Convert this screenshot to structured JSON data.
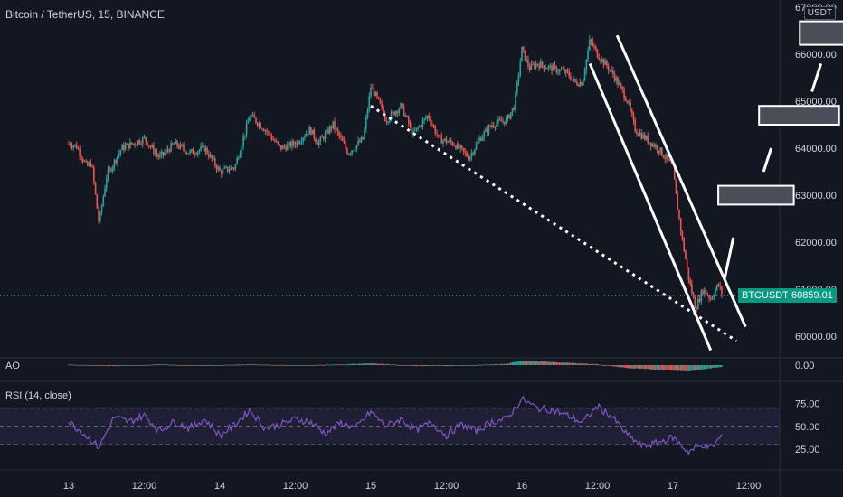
{
  "header": {
    "title": "Bitcoin / TetherUS, 15, BINANCE",
    "currency": "USDT"
  },
  "price_tag": {
    "symbol": "BTCUSDT",
    "value": "60859.01",
    "color": "#089981"
  },
  "indicators": {
    "ao_label": "AO",
    "rsi_label": "RSI (14, close)"
  },
  "colors": {
    "background": "#131722",
    "up": "#26a69a",
    "down": "#ef5350",
    "rsi_line": "#7e57c2",
    "rsi_band": "#7e57c2",
    "annotations": "#ffffff"
  },
  "chart_data": {
    "type": "candlestick",
    "title": "Bitcoin / TetherUS, 15, BINANCE",
    "xlabel": "",
    "ylabel": "",
    "x_ticks": [
      "13",
      "12:00",
      "14",
      "12:00",
      "15",
      "12:00",
      "16",
      "12:00",
      "17",
      "12:00"
    ],
    "y_ticks": [
      "60000.00",
      "61000.00",
      "62000.00",
      "63000.00",
      "64000.00",
      "65000.00",
      "66000.00",
      "67000.00"
    ],
    "ylim": [
      59500,
      67000
    ],
    "last_price": 60859.01,
    "price_path": [
      [
        0.0,
        64100
      ],
      [
        0.05,
        64050
      ],
      [
        0.12,
        63600
      ],
      [
        0.15,
        63700
      ],
      [
        0.2,
        62400
      ],
      [
        0.25,
        63400
      ],
      [
        0.35,
        64000
      ],
      [
        0.5,
        64200
      ],
      [
        0.6,
        63800
      ],
      [
        0.7,
        64100
      ],
      [
        0.8,
        63900
      ],
      [
        0.9,
        64000
      ],
      [
        1.0,
        63500
      ],
      [
        1.1,
        63600
      ],
      [
        1.2,
        64700
      ],
      [
        1.3,
        64400
      ],
      [
        1.4,
        64000
      ],
      [
        1.5,
        64100
      ],
      [
        1.6,
        64400
      ],
      [
        1.65,
        64100
      ],
      [
        1.75,
        64500
      ],
      [
        1.85,
        63900
      ],
      [
        1.95,
        64200
      ],
      [
        2.0,
        65300
      ],
      [
        2.05,
        65000
      ],
      [
        2.1,
        64600
      ],
      [
        2.2,
        64900
      ],
      [
        2.28,
        64300
      ],
      [
        2.38,
        64700
      ],
      [
        2.45,
        64200
      ],
      [
        2.55,
        64100
      ],
      [
        2.65,
        63800
      ],
      [
        2.72,
        64200
      ],
      [
        2.8,
        64500
      ],
      [
        2.9,
        64600
      ],
      [
        2.95,
        64900
      ],
      [
        3.0,
        66100
      ],
      [
        3.05,
        65700
      ],
      [
        3.1,
        65800
      ],
      [
        3.2,
        65700
      ],
      [
        3.3,
        65600
      ],
      [
        3.35,
        65400
      ],
      [
        3.4,
        65400
      ],
      [
        3.45,
        66300
      ],
      [
        3.5,
        66000
      ],
      [
        3.6,
        65600
      ],
      [
        3.7,
        65000
      ],
      [
        3.75,
        64400
      ],
      [
        3.82,
        64200
      ],
      [
        3.9,
        64000
      ],
      [
        3.95,
        63800
      ],
      [
        4.0,
        63600
      ],
      [
        4.02,
        63000
      ],
      [
        4.05,
        62300
      ],
      [
        4.08,
        61700
      ],
      [
        4.1,
        61300
      ],
      [
        4.12,
        61000
      ],
      [
        4.15,
        60600
      ],
      [
        4.2,
        61000
      ],
      [
        4.25,
        60800
      ],
      [
        4.3,
        61100
      ],
      [
        4.33,
        60859
      ]
    ],
    "annotations": {
      "dotted_trendline": [
        [
          2.0,
          64900
        ],
        [
          4.42,
          59900
        ]
      ],
      "channel_upper": [
        [
          3.63,
          66400
        ],
        [
          4.48,
          60200
        ]
      ],
      "channel_lower": [
        [
          3.45,
          65800
        ],
        [
          4.25,
          59700
        ]
      ],
      "projection_dashes": [
        [
          [
            4.34,
            61200
          ],
          [
            4.4,
            62100
          ]
        ],
        [
          [
            4.6,
            63500
          ],
          [
            4.65,
            64000
          ]
        ],
        [
          [
            4.92,
            65200
          ],
          [
            4.98,
            65800
          ]
        ]
      ],
      "target_boxes": [
        {
          "x0": 4.3,
          "x1": 4.8,
          "y0": 62800,
          "y1": 63200
        },
        {
          "x0": 4.57,
          "x1": 5.1,
          "y0": 64500,
          "y1": 64900
        },
        {
          "x0": 4.84,
          "x1": 5.5,
          "y0": 66200,
          "y1": 66700
        }
      ]
    },
    "ao": {
      "label": "AO",
      "ticks": [
        "0.00"
      ],
      "ylim": [
        -600,
        600
      ],
      "path": [
        [
          0.0,
          40
        ],
        [
          0.3,
          -60
        ],
        [
          0.6,
          50
        ],
        [
          0.9,
          -40
        ],
        [
          1.2,
          60
        ],
        [
          1.5,
          -30
        ],
        [
          1.8,
          40
        ],
        [
          2.0,
          120
        ],
        [
          2.3,
          -60
        ],
        [
          2.6,
          -40
        ],
        [
          2.9,
          80
        ],
        [
          3.0,
          300
        ],
        [
          3.3,
          150
        ],
        [
          3.5,
          60
        ],
        [
          3.7,
          -200
        ],
        [
          3.9,
          -300
        ],
        [
          4.1,
          -420
        ],
        [
          4.33,
          -100
        ]
      ]
    },
    "rsi": {
      "label": "RSI (14, close)",
      "ticks": [
        "25.00",
        "50.00",
        "75.00"
      ],
      "ylim": [
        15,
        85
      ],
      "bands": [
        30,
        70
      ],
      "path": [
        [
          0.0,
          55
        ],
        [
          0.1,
          42
        ],
        [
          0.2,
          27
        ],
        [
          0.3,
          60
        ],
        [
          0.4,
          55
        ],
        [
          0.5,
          62
        ],
        [
          0.6,
          45
        ],
        [
          0.7,
          55
        ],
        [
          0.8,
          48
        ],
        [
          0.9,
          58
        ],
        [
          1.0,
          40
        ],
        [
          1.1,
          52
        ],
        [
          1.2,
          68
        ],
        [
          1.3,
          48
        ],
        [
          1.4,
          52
        ],
        [
          1.5,
          58
        ],
        [
          1.6,
          55
        ],
        [
          1.7,
          42
        ],
        [
          1.8,
          54
        ],
        [
          1.9,
          48
        ],
        [
          2.0,
          66
        ],
        [
          2.1,
          50
        ],
        [
          2.2,
          58
        ],
        [
          2.3,
          46
        ],
        [
          2.4,
          54
        ],
        [
          2.5,
          40
        ],
        [
          2.6,
          52
        ],
        [
          2.7,
          45
        ],
        [
          2.8,
          55
        ],
        [
          2.9,
          58
        ],
        [
          3.0,
          80
        ],
        [
          3.1,
          70
        ],
        [
          3.2,
          68
        ],
        [
          3.3,
          62
        ],
        [
          3.4,
          54
        ],
        [
          3.5,
          72
        ],
        [
          3.6,
          60
        ],
        [
          3.7,
          40
        ],
        [
          3.8,
          28
        ],
        [
          3.9,
          32
        ],
        [
          4.0,
          38
        ],
        [
          4.1,
          22
        ],
        [
          4.2,
          30
        ],
        [
          4.25,
          26
        ],
        [
          4.3,
          35
        ],
        [
          4.33,
          42
        ]
      ]
    }
  }
}
